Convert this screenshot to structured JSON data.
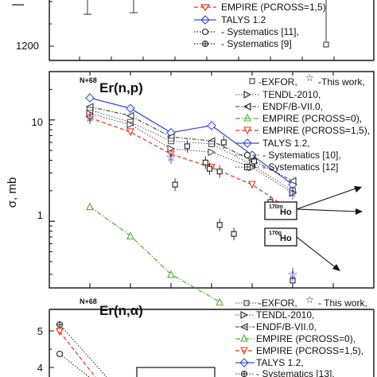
{
  "chart_data": [
    {
      "type": "line",
      "title": "",
      "legend": [
        "EMPIRE (PCROSS=1,5)",
        "TALYS 1.2",
        "- Systematics [11],",
        "- Systematics [9]"
      ],
      "y_tick_labels": [
        "1200"
      ],
      "series": [
        {
          "name": "EMPIRE (PCROSS=1,5)",
          "color": "#e8341c"
        },
        {
          "name": "TALYS 1.2",
          "color": "#3b4fd0"
        },
        {
          "name": "- Systematics [11],",
          "color": "#222222"
        },
        {
          "name": "- Systematics [9]",
          "color": "#222222"
        }
      ]
    },
    {
      "type": "line",
      "title_sup": "N+68",
      "title_main": "Er(n,p)",
      "ylabel": "σ, mb",
      "yscale": "log",
      "ylim": [
        0.22,
        30
      ],
      "xlim": [
        0,
        8
      ],
      "y_tick_labels": [
        "10",
        "1"
      ],
      "legend": {
        "exfor": "-EXFOR,",
        "this_work": "-This work,",
        "items": [
          "TENDL-2010,",
          "ENDF/B-VII.0,",
          "EMPIRE (PCROSS=0),",
          "EMPIRE (PCROSS=1,5),",
          "TALYS 1.2,",
          "- Systematics [10],",
          "- Systematics [12]"
        ]
      },
      "series": [
        {
          "name": "TALYS 1.2,",
          "color": "#3b4fd0",
          "x": [
            1,
            2,
            3,
            4,
            5,
            6
          ],
          "values": [
            16.5,
            13,
            7.5,
            8.8,
            4.5,
            2.3
          ]
        },
        {
          "name": "ENDF/B-VII.0,",
          "color": "#333333",
          "x": [
            1,
            2,
            3,
            4,
            5,
            6
          ],
          "values": [
            13.5,
            11,
            6.8,
            6.2,
            4.0,
            2.5
          ]
        },
        {
          "name": "- Systematics [12]",
          "color": "#555555",
          "x": [
            1,
            2,
            3,
            4,
            5,
            6
          ],
          "values": [
            12.5,
            9.5,
            6.2,
            5.8,
            3.6,
            2.0
          ]
        },
        {
          "name": "TENDL-2010,",
          "color": "#444444",
          "x": [
            1,
            2,
            3,
            4,
            5,
            6
          ],
          "values": [
            11.5,
            9.0,
            5.2,
            4.8,
            3.4,
            1.9
          ]
        },
        {
          "name": "EMPIRE (PCROSS=1,5),",
          "color": "#e8341c",
          "x": [
            1,
            2,
            3,
            4,
            5,
            6
          ],
          "values": [
            10.5,
            7.6,
            4.6,
            3.4,
            2.3,
            1.25
          ]
        },
        {
          "name": "EMPIRE (PCROSS=0),",
          "color": "#55b033",
          "x": [
            1,
            2,
            3,
            4.2
          ],
          "values": [
            1.4,
            0.72,
            0.3,
            0.16
          ]
        },
        {
          "name": "-EXFOR,",
          "color": "#222222",
          "x": [
            3.1,
            3.4,
            3.85,
            3.95,
            4.2,
            4.2,
            4.3,
            4.55,
            5.05,
            5.45,
            6
          ],
          "values": [
            2.3,
            5.5,
            3.8,
            3.3,
            0.92,
            3.1,
            6.0,
            0.75,
            3.9,
            1.55,
            0.26
          ]
        },
        {
          "name": "-This work,",
          "color": "#2a2aa0",
          "x": [
            1,
            3,
            6,
            6
          ],
          "values": [
            10.5,
            4.3,
            1.9,
            0.3
          ]
        }
      ],
      "annotations": [
        {
          "text_sup": "170m",
          "text": "Ho"
        },
        {
          "text_sup": "170g",
          "text": "Ho"
        }
      ]
    },
    {
      "type": "line",
      "title_sup": "N+68",
      "title_main": "Er(n,α)",
      "y_tick_labels": [
        "5",
        "4"
      ],
      "legend": {
        "exfor": "-EXFOR,",
        "this_work": "- This work,",
        "items": [
          "TENDL-2010,",
          "ENDF/B-VII.0,",
          "EMPIRE (PCROSS=0),",
          "EMPIRE (PCROSS=1,5),",
          "TALYS 1.2,",
          "- Systematics [13],"
        ]
      },
      "series": [
        {
          "name": "Systematics (+)",
          "color": "#222222",
          "x": [
            1,
            2
          ],
          "values": [
            5.2,
            3.9
          ]
        },
        {
          "name": "EMPIRE (PCROSS=1,5),",
          "color": "#e8341c",
          "x": [
            1,
            2
          ],
          "values": [
            5.05,
            3.85
          ]
        },
        {
          "name": "Systematics (o)",
          "color": "#222222",
          "x": [
            1,
            2
          ],
          "values": [
            4.4,
            3.6
          ]
        }
      ]
    }
  ]
}
